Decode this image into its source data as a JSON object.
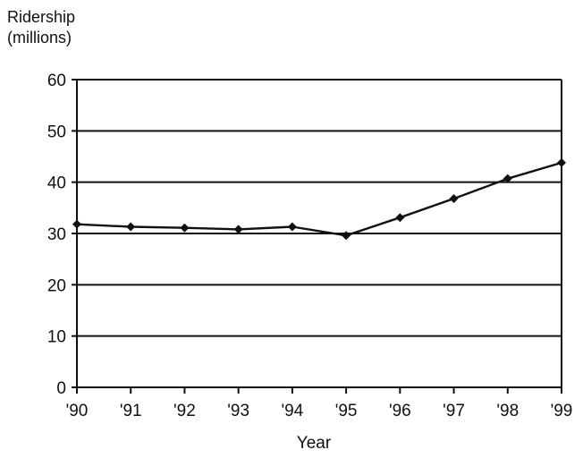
{
  "chart_data": {
    "type": "line",
    "title": "",
    "ylabel_lines": [
      "Ridership",
      "(millions)"
    ],
    "xlabel": "Year",
    "categories": [
      "'90",
      "'91",
      "'92",
      "'93",
      "'94",
      "'95",
      "'96",
      "'97",
      "'98",
      "'99"
    ],
    "series": [
      {
        "values": [
          31.8,
          31.3,
          31.1,
          30.8,
          31.3,
          29.6,
          33.1,
          36.8,
          40.7,
          43.8
        ]
      }
    ],
    "ylim": [
      0,
      60
    ],
    "yticks": [
      0,
      10,
      20,
      30,
      40,
      50,
      60
    ],
    "grid": true,
    "legend": "none",
    "colors": {
      "line": "#111111",
      "grid": "#111111",
      "text": "#111111"
    }
  }
}
